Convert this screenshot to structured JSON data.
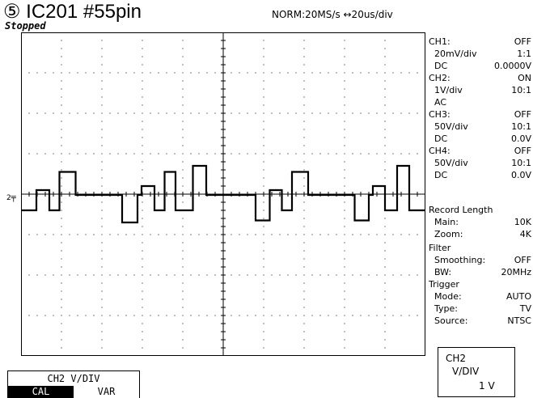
{
  "header": {
    "title": "⑤ IC201  #55pin",
    "status": "Stopped",
    "acquisition": "NORM:20MS/s   ↔20us/div"
  },
  "display": {
    "trigger_marker": "T",
    "ch2_marker": "2",
    "grid_divisions": {
      "x": 10,
      "y": 8
    },
    "trace": {
      "channel": "CH2",
      "volts_per_div": 1,
      "time_per_div_us": 20,
      "segments_div": [
        [
          0.0,
          -0.4
        ],
        [
          0.38,
          0.1
        ],
        [
          0.7,
          -0.4
        ],
        [
          0.95,
          0.55
        ],
        [
          1.35,
          -0.02
        ],
        [
          2.5,
          -0.7
        ],
        [
          2.88,
          -0.02
        ],
        [
          2.98,
          0.2
        ],
        [
          3.3,
          -0.4
        ],
        [
          3.55,
          0.55
        ],
        [
          3.82,
          -0.4
        ],
        [
          4.25,
          0.7
        ],
        [
          4.58,
          -0.02
        ],
        [
          5.8,
          -0.65
        ],
        [
          6.15,
          0.1
        ],
        [
          6.45,
          -0.4
        ],
        [
          6.7,
          0.55
        ],
        [
          7.1,
          -0.02
        ],
        [
          8.25,
          -0.65
        ],
        [
          8.6,
          -0.02
        ],
        [
          8.7,
          0.2
        ],
        [
          9.0,
          -0.4
        ],
        [
          9.3,
          0.7
        ],
        [
          9.6,
          -0.4
        ],
        [
          10.0,
          -0.4
        ]
      ]
    }
  },
  "side_panel": {
    "ch1": {
      "label": "CH1:",
      "state": "OFF",
      "scale": "20mV/div",
      "probe": "1:1",
      "coupling": "DC",
      "offset": "0.0000V"
    },
    "ch2": {
      "label": "CH2:",
      "state": "ON",
      "scale": "1V/div",
      "probe": "10:1",
      "coupling": "AC"
    },
    "ch3": {
      "label": "CH3:",
      "state": "OFF",
      "scale": "50V/div",
      "probe": "10:1",
      "coupling": "DC",
      "offset": "0.0V"
    },
    "ch4": {
      "label": "CH4:",
      "state": "OFF",
      "scale": "50V/div",
      "probe": "10:1",
      "coupling": "DC",
      "offset": "0.0V"
    },
    "record": {
      "heading": "Record Length",
      "main_label": "Main:",
      "main_value": "10K",
      "zoom_label": "Zoom:",
      "zoom_value": "4K"
    },
    "filter": {
      "heading": "Filter",
      "smoothing_label": "Smoothing:",
      "smoothing_value": "OFF",
      "bw_label": "BW:",
      "bw_value": "20MHz"
    },
    "trigger": {
      "heading": "Trigger",
      "mode_label": "Mode:",
      "mode_value": "AUTO",
      "type_label": "Type:",
      "type_value": "TV",
      "source_label": "Source:",
      "source_value": "NTSC"
    }
  },
  "ch2_box": {
    "line1": "CH2",
    "line2": "V/DIV",
    "value": "1 V"
  },
  "soft_menu": {
    "title": "CH2 V/DIV",
    "options": [
      "CAL",
      "VAR"
    ],
    "selected": "CAL"
  }
}
